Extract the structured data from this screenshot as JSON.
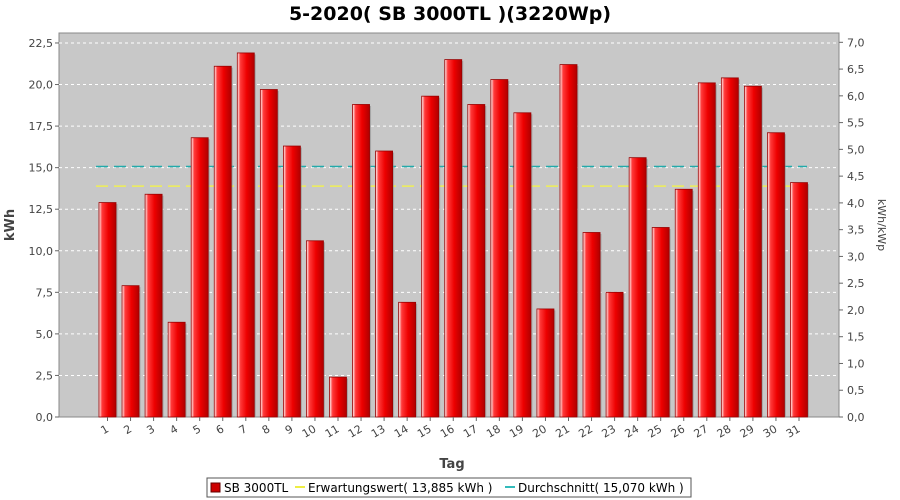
{
  "chart_data": {
    "type": "bar",
    "title": "5-2020( SB 3000TL )(3220Wp)",
    "xlabel": "Tag",
    "ylabel": "kWh",
    "ylabel_right": "kWh/kWp",
    "categories": [
      "1",
      "2",
      "3",
      "4",
      "5",
      "6",
      "7",
      "8",
      "9",
      "10",
      "11",
      "12",
      "13",
      "14",
      "15",
      "16",
      "17",
      "18",
      "19",
      "20",
      "21",
      "22",
      "23",
      "24",
      "25",
      "26",
      "27",
      "28",
      "29",
      "30",
      "31"
    ],
    "series": [
      {
        "name": "SB 3000TL",
        "values": [
          12.9,
          7.9,
          13.4,
          5.7,
          16.8,
          21.1,
          21.9,
          19.7,
          16.3,
          10.6,
          2.4,
          18.8,
          16.0,
          6.9,
          19.3,
          21.5,
          18.8,
          20.3,
          18.3,
          6.5,
          21.2,
          11.1,
          7.5,
          15.6,
          11.4,
          13.7,
          20.1,
          20.4,
          19.9,
          17.1,
          14.1
        ]
      }
    ],
    "reference_lines": [
      {
        "name": "Erwartungswert",
        "value": 13.885,
        "color": "#ffff66"
      },
      {
        "name": "Durchschnitt",
        "value": 15.07,
        "color": "#33bbbb"
      }
    ],
    "ylim": [
      0,
      23.1
    ],
    "yticks": [
      "0,0",
      "2,5",
      "5,0",
      "7,5",
      "10,0",
      "12,5",
      "15,0",
      "17,5",
      "20,0",
      "22,5"
    ],
    "ylim_right": [
      0,
      7.174
    ],
    "yticks_right": [
      "0,0",
      "0,5",
      "1,0",
      "1,5",
      "2,0",
      "2,5",
      "3,0",
      "3,5",
      "4,0",
      "4,5",
      "5,0",
      "5,5",
      "6,0",
      "6,5",
      "7,0"
    ],
    "grid": true,
    "legend_position": "bottom",
    "legend": [
      "SB 3000TL",
      "Erwartungswert( 13,885 kWh )",
      "Durchschnitt( 15,070 kWh )"
    ],
    "colors": {
      "bar": "#ee0000",
      "bar_dark": "#990000",
      "plot_bg": "#c8c8c8"
    }
  }
}
